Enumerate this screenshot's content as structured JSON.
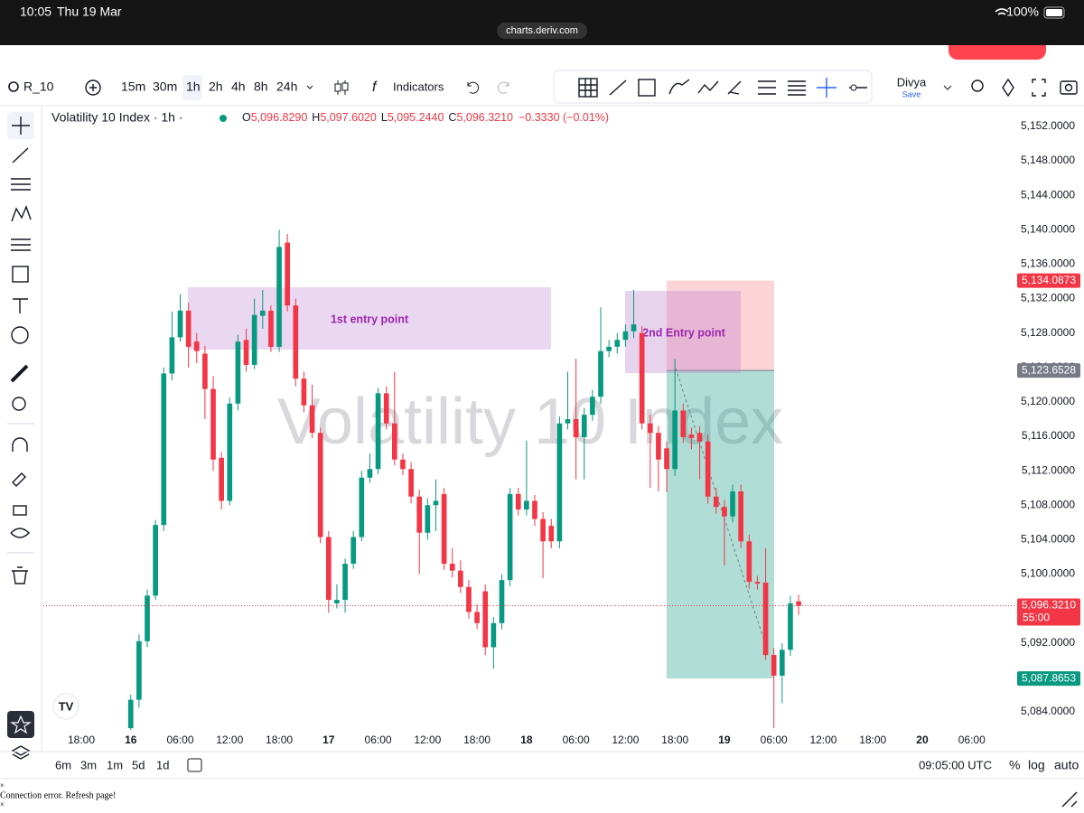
{
  "status_bar": {
    "time": "10:05",
    "date": "Thu 19 Mar",
    "url": "charts.deriv.com",
    "battery": "100%"
  },
  "toolbar": {
    "symbol": "R_10",
    "intervals": [
      "15m",
      "30m",
      "1h",
      "2h",
      "4h",
      "8h",
      "24h"
    ],
    "indicators": "Indicators",
    "layout_name": "Divya",
    "save": "Save"
  },
  "legend": {
    "title": "Volatility 10 Index · 1h ·",
    "items": [
      {
        "key": "O",
        "value": "5,096.8290"
      },
      {
        "key": "H",
        "value": "5,097.6020"
      },
      {
        "key": "L",
        "value": "5,095.2440"
      },
      {
        "key": "C",
        "value": "5,096.3210"
      }
    ],
    "change": "−0.3330 (−0.01%)"
  },
  "chart_data": {
    "type": "candlestick",
    "watermark": "Volatility 10 Index",
    "up_color": "#089981",
    "down_color": "#f23645",
    "x": [
      6,
      7,
      8,
      9,
      10,
      11,
      12,
      13,
      14,
      15,
      16,
      17,
      18,
      19,
      20,
      21,
      22,
      23,
      24,
      25,
      26,
      27,
      28,
      29,
      30,
      31,
      32,
      33,
      34,
      35,
      36,
      37,
      38,
      39,
      40,
      41,
      42,
      43,
      44,
      45,
      46,
      47,
      48,
      49,
      50,
      51,
      52,
      53,
      54,
      55,
      56,
      57,
      58,
      59,
      60,
      61,
      62,
      63,
      64,
      65,
      66,
      67,
      68,
      69,
      70,
      71,
      72,
      73,
      74,
      75,
      76,
      77,
      78,
      79,
      80,
      81,
      82,
      83,
      84,
      85,
      86,
      87
    ],
    "open": [
      5082.1,
      5085.4,
      5092.2,
      5097.5,
      5105.7,
      5123.3,
      5127.5,
      5130.6,
      5127,
      5125.6,
      5121.5,
      5113.5,
      5108.5,
      5119.8,
      5127.2,
      5124.3,
      5130,
      5130.6,
      5126.4,
      5138.5,
      5131.2,
      5122.7,
      5119.6,
      5116.4,
      5104.3,
      5096.6,
      5097,
      5101.2,
      5104.3,
      5111.2,
      5112.2,
      5121,
      5117.5,
      5113.3,
      5112.2,
      5109,
      5104.8,
      5108,
      5109.3,
      5101.2,
      5100.4,
      5098.5,
      5095.6,
      5098,
      5091.5,
      5094.3,
      5099.3,
      5109.3,
      5107.5,
      5108.5,
      5106.4,
      5105.6,
      5103.8,
      5117.5,
      5118,
      5115.9,
      5118.5,
      5120.6,
      5125.9,
      5126.4,
      5127.2,
      5128.2,
      5128,
      5117.5,
      5116.4,
      5114.6,
      5112.2,
      5119,
      5116.2,
      5116.4,
      5115.4,
      5109,
      5107.8,
      5106.7,
      5109.6,
      5103.8,
      5099.1,
      5099,
      5090.6,
      5088.2,
      5091.2,
      5096.829
    ],
    "high": [
      5086,
      5093,
      5098.2,
      5106.3,
      5124,
      5130.5,
      5132.5,
      5131.5,
      5128,
      5126.5,
      5123,
      5114.2,
      5120.5,
      5127.8,
      5128.5,
      5132,
      5133,
      5131.2,
      5140,
      5139.5,
      5132,
      5123.5,
      5122,
      5117,
      5105,
      5098.8,
      5101.8,
      5105,
      5112,
      5114,
      5121.6,
      5121.8,
      5123.5,
      5114,
      5113,
      5109.8,
      5108.8,
      5111,
      5110,
      5103,
      5101.6,
      5099.3,
      5096.5,
      5098.8,
      5095,
      5100,
      5110,
      5110,
      5115.5,
      5109.2,
      5107.2,
      5106.4,
      5118.3,
      5123.5,
      5125,
      5119.3,
      5121.4,
      5131,
      5127.2,
      5128,
      5129,
      5133,
      5128.8,
      5118.5,
      5117.2,
      5115.4,
      5125,
      5119.8,
      5117,
      5117.2,
      5116.2,
      5110,
      5108.6,
      5110.4,
      5110.4,
      5104.6,
      5099.8,
      5103,
      5091.4,
      5092,
      5097.5,
      5097.602
    ],
    "low": [
      5081.9,
      5084.5,
      5091.5,
      5097,
      5105,
      5122.5,
      5127,
      5124,
      5124.5,
      5118,
      5112,
      5107.5,
      5108,
      5119,
      5123.5,
      5123.8,
      5128.5,
      5125.8,
      5125.8,
      5130.5,
      5121.8,
      5118.8,
      5115.8,
      5103.6,
      5095.5,
      5096,
      5095.5,
      5100.6,
      5103.8,
      5110.6,
      5111.6,
      5116.8,
      5112.6,
      5111.5,
      5108.2,
      5100,
      5104,
      5105,
      5100.5,
      5099.6,
      5097.8,
      5094.8,
      5093.6,
      5090.6,
      5089,
      5093.6,
      5098.6,
      5106.8,
      5106.8,
      5105.6,
      5099.5,
      5103,
      5103,
      5116.8,
      5111,
      5111,
      5117.8,
      5119.8,
      5125.2,
      5125.6,
      5126.4,
      5127.4,
      5116.8,
      5110,
      5109.6,
      5109.5,
      5111.4,
      5115.2,
      5114.5,
      5111,
      5108.2,
      5107,
      5101,
      5106,
      5103,
      5098.3,
      5098.2,
      5090,
      5082.1,
      5085,
      5090.5,
      5095.244
    ],
    "close": [
      5085.4,
      5092.2,
      5097.5,
      5105.7,
      5123.3,
      5127.5,
      5130.6,
      5126.4,
      5125.9,
      5121.5,
      5113.3,
      5108.5,
      5119.8,
      5127,
      5124.3,
      5130.1,
      5130.6,
      5126.4,
      5138,
      5131.2,
      5122.7,
      5119.6,
      5116.4,
      5104.3,
      5097,
      5097,
      5101.2,
      5104.3,
      5111.2,
      5112.2,
      5121,
      5117.5,
      5113.3,
      5112.2,
      5109,
      5104.8,
      5108,
      5108.5,
      5101.2,
      5100.4,
      5098.5,
      5095.6,
      5094.3,
      5091.5,
      5094.3,
      5099.3,
      5109.3,
      5107.5,
      5108.5,
      5106.4,
      5103.8,
      5103.8,
      5117.5,
      5118,
      5115.9,
      5118.5,
      5120.6,
      5125.9,
      5126.4,
      5127.2,
      5128.2,
      5129,
      5117.5,
      5116.4,
      5113.3,
      5112.2,
      5119,
      5115.9,
      5115.8,
      5115.4,
      5109,
      5107.8,
      5106.7,
      5109.6,
      5103.8,
      5099.1,
      5098.9,
      5090.6,
      5088.2,
      5091.2,
      5096.6,
      5096.321
    ],
    "xlim": [
      -4.6,
      112.3
    ],
    "xticks": [
      {
        "value": 0,
        "label": "18:00"
      },
      {
        "value": 6,
        "label": "16"
      },
      {
        "value": 12,
        "label": "06:00"
      },
      {
        "value": 18,
        "label": "12:00"
      },
      {
        "value": 24,
        "label": "18:00"
      },
      {
        "value": 30,
        "label": "17"
      },
      {
        "value": 36,
        "label": "06:00"
      },
      {
        "value": 42,
        "label": "12:00"
      },
      {
        "value": 48,
        "label": "18:00"
      },
      {
        "value": 54,
        "label": "18"
      },
      {
        "value": 60,
        "label": "06:00"
      },
      {
        "value": 66,
        "label": "12:00"
      },
      {
        "value": 72,
        "label": "18:00"
      },
      {
        "value": 78,
        "label": "19"
      },
      {
        "value": 84,
        "label": "06:00"
      },
      {
        "value": 90,
        "label": "12:00"
      },
      {
        "value": 96,
        "label": "18:00"
      },
      {
        "value": 102,
        "label": "20"
      },
      {
        "value": 108,
        "label": "06:00"
      }
    ],
    "ylim": [
      5081.9,
      5154.3
    ],
    "yticks": [
      {
        "value": 5084,
        "label": "5,084.0000"
      },
      {
        "value": 5088,
        "label": "5,088.0000"
      },
      {
        "value": 5092,
        "label": "5,092.0000"
      },
      {
        "value": 5096,
        "label": "5,096.0000"
      },
      {
        "value": 5100,
        "label": "5,100.0000"
      },
      {
        "value": 5104,
        "label": "5,104.0000"
      },
      {
        "value": 5108,
        "label": "5,108.0000"
      },
      {
        "value": 5112,
        "label": "5,112.0000"
      },
      {
        "value": 5116,
        "label": "5,116.0000"
      },
      {
        "value": 5120,
        "label": "5,120.0000"
      },
      {
        "value": 5124,
        "label": "5,124.0000"
      },
      {
        "value": 5128,
        "label": "5,128.0000"
      },
      {
        "value": 5132,
        "label": "5,132.0000"
      },
      {
        "value": 5136,
        "label": "5,136.0000"
      },
      {
        "value": 5140,
        "label": "5,140.0000"
      },
      {
        "value": 5144,
        "label": "5,144.0000"
      },
      {
        "value": 5148,
        "label": "5,148.0000"
      },
      {
        "value": 5152,
        "label": "5,152.0000"
      }
    ],
    "price_labels": [
      {
        "value": 5134.0873,
        "label": "5,134.0873",
        "color": "#f23645"
      },
      {
        "value": 5123.6528,
        "label": "5,123.6528",
        "color": "#787b86"
      },
      {
        "value": 5096.321,
        "label": "5,096.3210",
        "color": "#f23645"
      },
      {
        "value": 5087.8653,
        "label": "5,087.8653",
        "color": "#089981"
      }
    ],
    "countdown": "55:00",
    "annotations": [
      "1st entry point",
      "2nd Entry point"
    ]
  },
  "bottom_bar": {
    "ranges": [
      "6m",
      "3m",
      "1m",
      "5d",
      "1d"
    ],
    "clock": "09:05:00 UTC",
    "options": [
      "%",
      "log",
      "auto"
    ]
  },
  "footer": {
    "error": "Connection error. Refresh page!"
  }
}
